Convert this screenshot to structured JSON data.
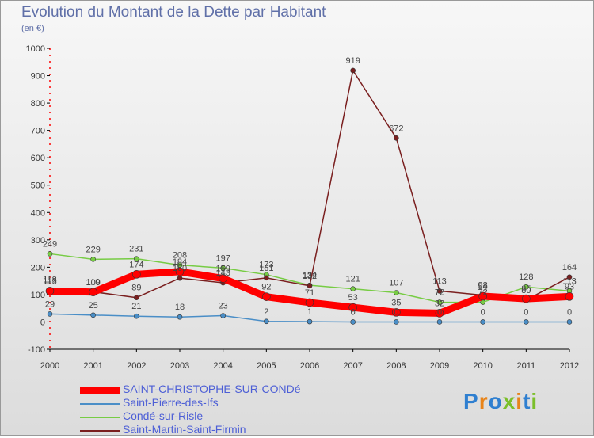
{
  "title": "Evolution du Montant de la Dette par Habitant",
  "subtitle": "(en €)",
  "logo": "Proxiti",
  "chart_data": {
    "type": "line",
    "title": "Evolution du Montant de la Dette par Habitant",
    "ylabel": "(en €)",
    "x": [
      "2000",
      "2001",
      "2002",
      "2003",
      "2004",
      "2005",
      "2006",
      "2007",
      "2008",
      "2009",
      "2010",
      "2011",
      "2012"
    ],
    "ylim": [
      -100,
      1000
    ],
    "yticks": [
      -100,
      0,
      100,
      200,
      300,
      400,
      500,
      600,
      700,
      800,
      900,
      1000
    ],
    "grid": false,
    "legend": "bottom-left",
    "series": [
      {
        "name": "SAINT-CHRISTOPHE-SUR-CONDé",
        "color": "#ff0000",
        "values": [
          113,
          109,
          174,
          184,
          159,
          92,
          71,
          53,
          35,
          32,
          94,
          85,
          93
        ]
      },
      {
        "name": "Saint-Pierre-des-Ifs",
        "color": "#4a8ec7",
        "values": [
          29,
          25,
          21,
          18,
          23,
          2,
          1,
          0,
          0,
          0,
          0,
          0,
          0
        ]
      },
      {
        "name": "Condé-sur-Risle",
        "color": "#77cc44",
        "values": [
          249,
          229,
          231,
          208,
          197,
          173,
          134,
          121,
          107,
          72,
          72,
          128,
          113
        ]
      },
      {
        "name": "Saint-Martin-Saint-Firmin",
        "color": "#7a1f1f",
        "values": [
          118,
          110,
          89,
          160,
          143,
          161,
          132,
          919,
          672,
          113,
          98,
          80,
          164
        ]
      }
    ]
  }
}
